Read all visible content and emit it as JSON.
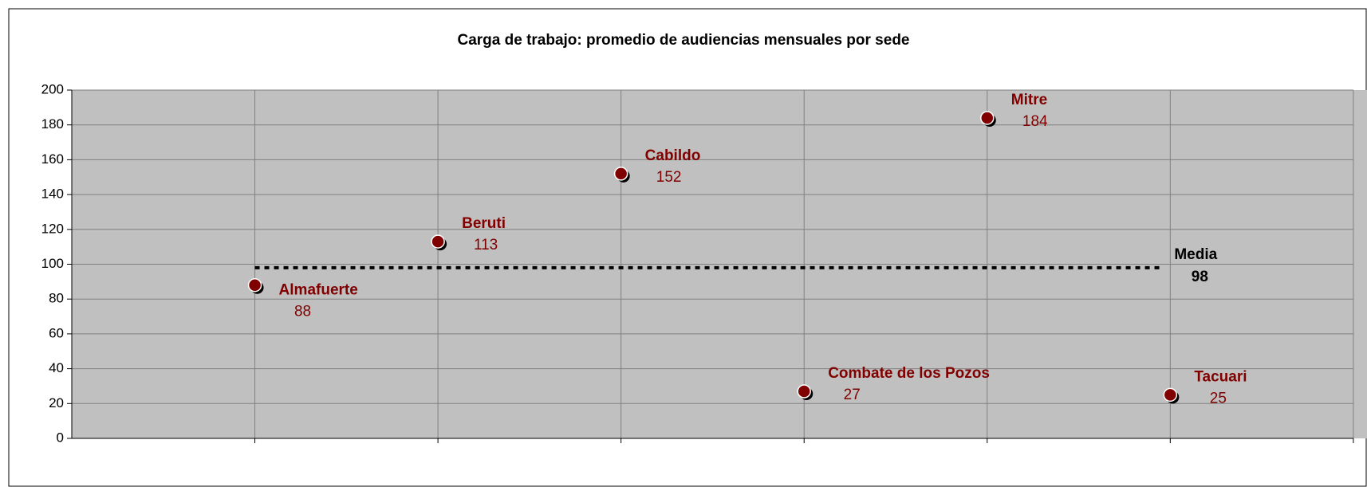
{
  "chart_data": {
    "type": "scatter",
    "title": "Carga de trabajo: promedio de audiencias mensuales por sede",
    "x": [
      1,
      2,
      3,
      4,
      5,
      6
    ],
    "values": [
      88,
      113,
      152,
      27,
      184,
      25
    ],
    "point_labels": [
      "Almafuerte",
      "Beruti",
      "Cabildo",
      "Combate de los Pozos",
      "Mitre",
      "Tacuari"
    ],
    "color": "#800000",
    "mean": {
      "name": "Media",
      "value": 98,
      "color": "#000000"
    },
    "xlim": [
      0,
      7
    ],
    "xticks": [
      1,
      2,
      3,
      4,
      5,
      6,
      7
    ],
    "ylim": [
      0,
      200
    ],
    "yticks": [
      0,
      20,
      40,
      60,
      80,
      100,
      120,
      140,
      160,
      180,
      200
    ],
    "grid": true
  }
}
